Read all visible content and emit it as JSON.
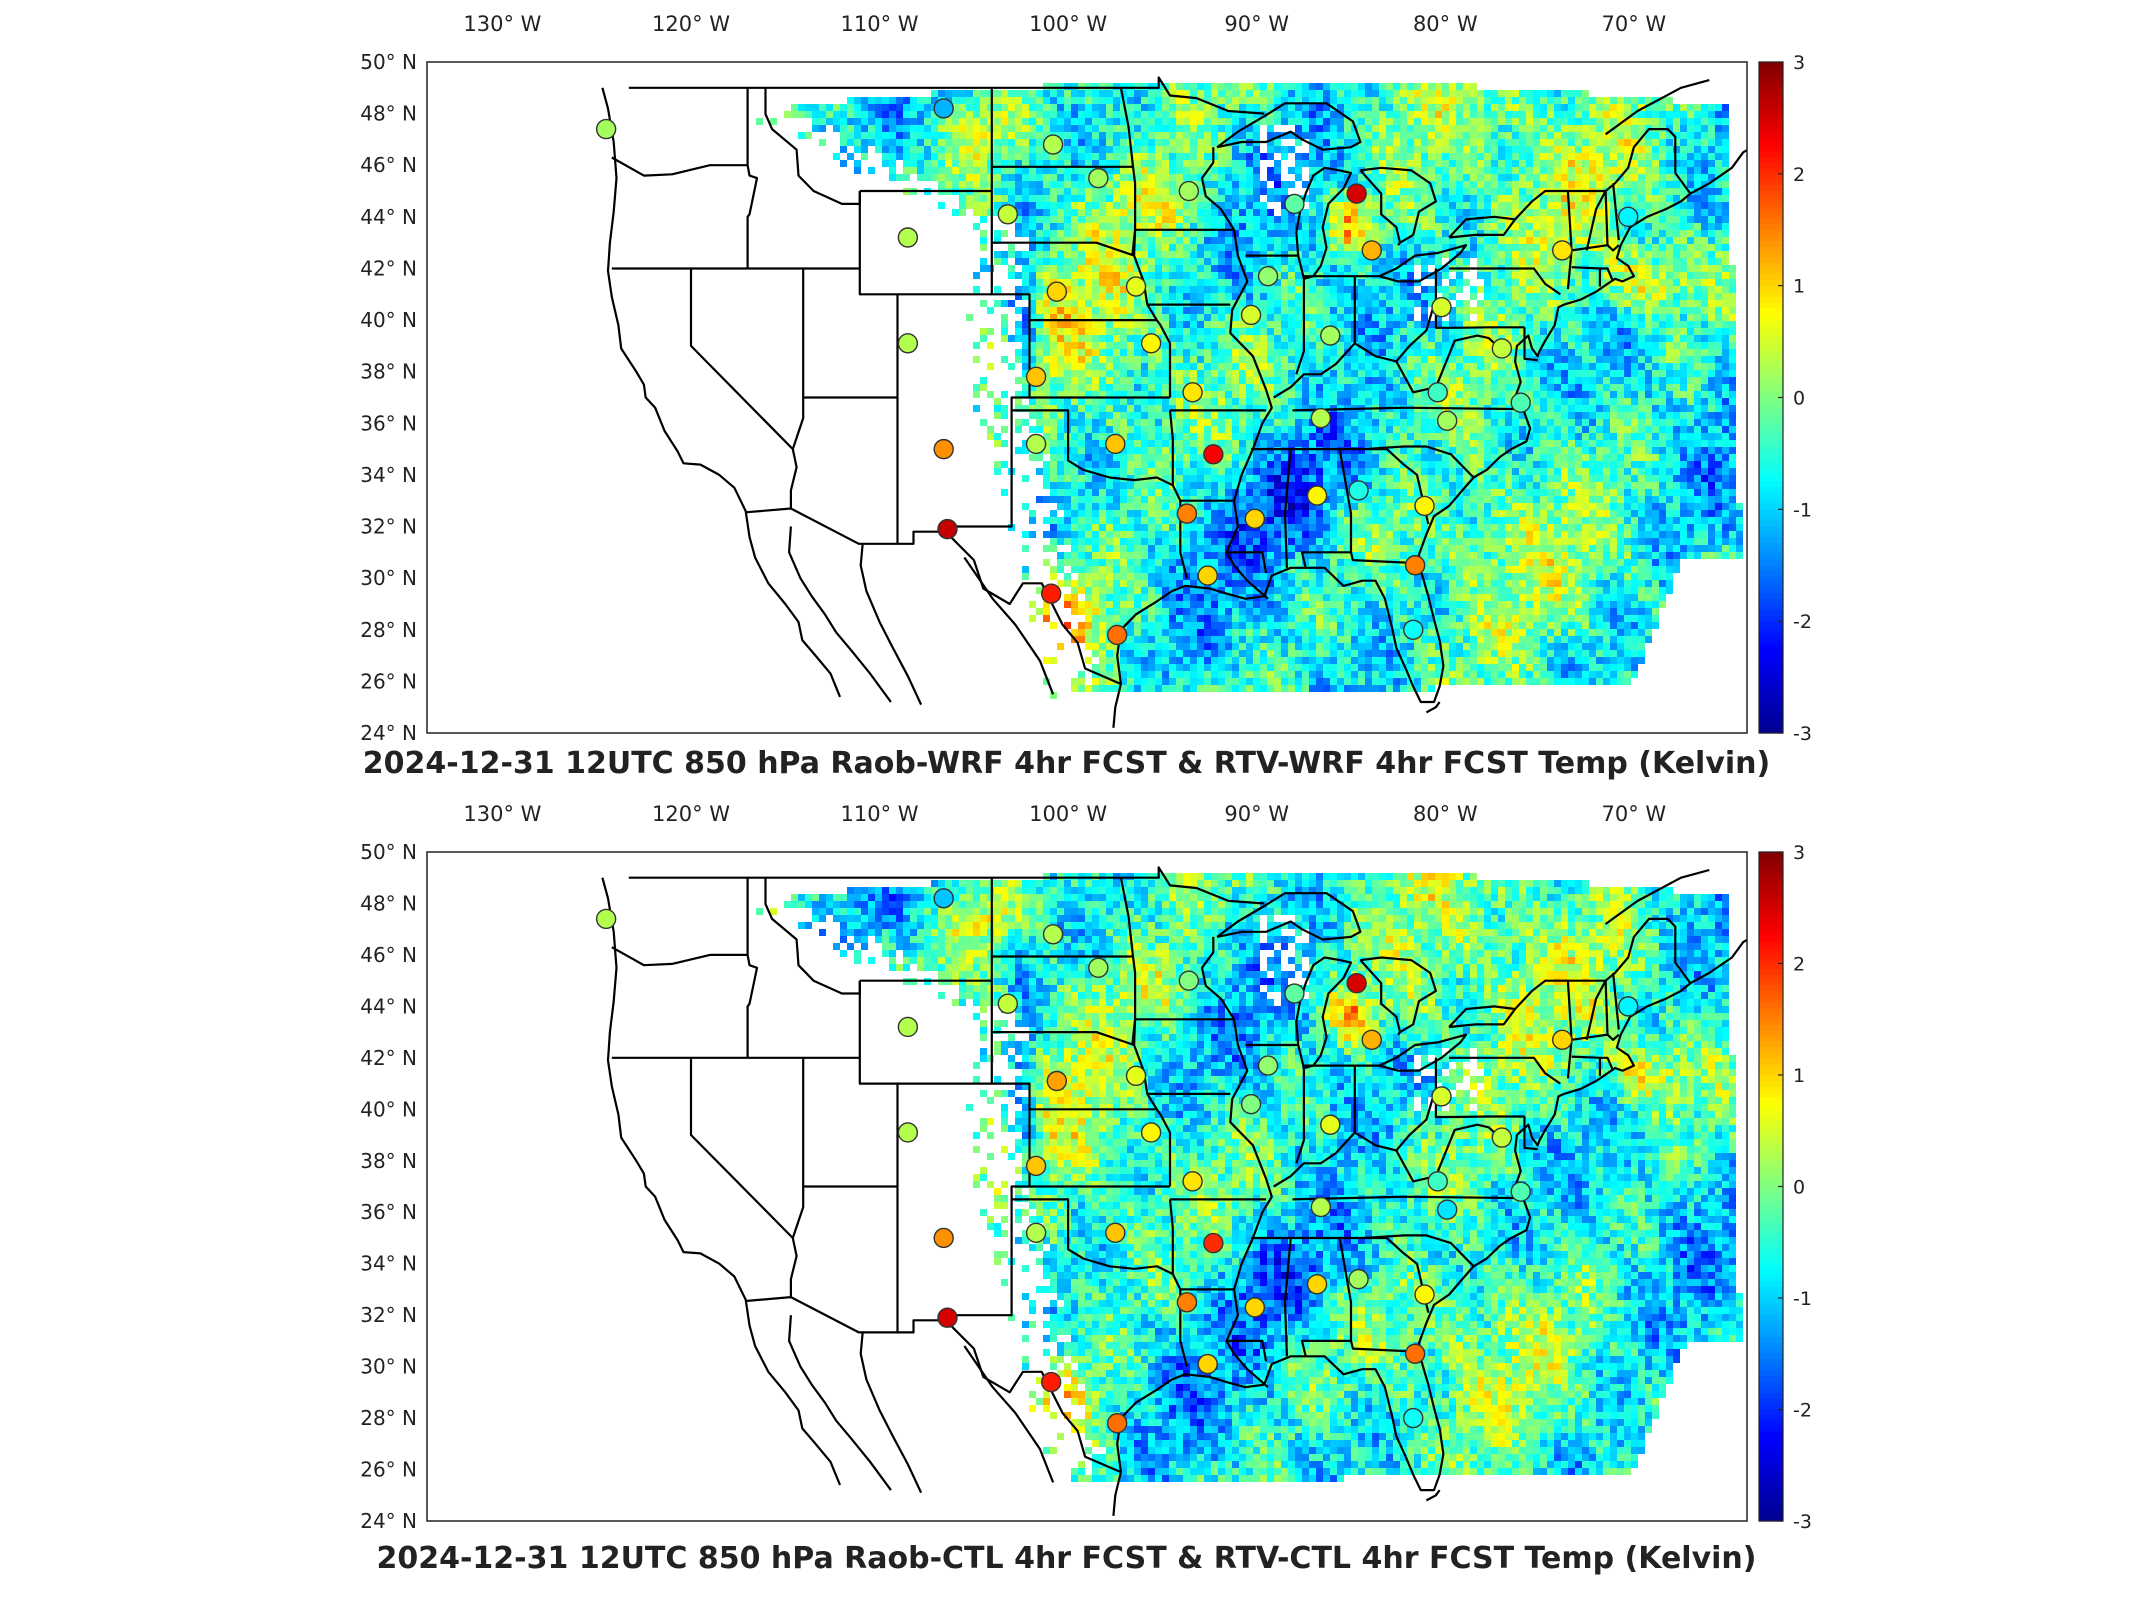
{
  "colors": {
    "scale": [
      "#00008f",
      "#0000ff",
      "#0080ff",
      "#00ffff",
      "#80ff80",
      "#ffff00",
      "#ff8000",
      "#ff0000",
      "#800000"
    ],
    "land": "#ffffff",
    "frame": "#000000"
  },
  "shared": {
    "lon_ticks": [
      "130° W",
      "120° W",
      "110° W",
      "100° W",
      "90° W",
      "80° W",
      "70° W"
    ],
    "lat_ticks": [
      "50° N",
      "48° N",
      "46° N",
      "44° N",
      "42° N",
      "40° N",
      "38° N",
      "36° N",
      "34° N",
      "32° N",
      "30° N",
      "28° N",
      "26° N",
      "24° N"
    ],
    "colorbar_ticks": [
      "3",
      "2",
      "1",
      "0",
      "-1",
      "-2",
      "-3"
    ],
    "colorbar_range": [
      -3,
      3
    ]
  },
  "maps": [
    {
      "title": "2024-12-31 12UTC 850 hPa Raob-WRF 4hr FCST & RTV-WRF 4hr FCST Temp (Kelvin)",
      "stations": [
        {
          "lon": -124.5,
          "lat": 47.4,
          "v": 0.2
        },
        {
          "lon": -106.6,
          "lat": 48.2,
          "v": -1.2
        },
        {
          "lon": -100.8,
          "lat": 46.8,
          "v": 0.3
        },
        {
          "lon": -98.4,
          "lat": 45.5,
          "v": 0.2
        },
        {
          "lon": -93.6,
          "lat": 45.0,
          "v": 0.2
        },
        {
          "lon": -108.5,
          "lat": 43.2,
          "v": 0.3
        },
        {
          "lon": -103.2,
          "lat": 44.1,
          "v": 0.4
        },
        {
          "lon": -100.6,
          "lat": 41.1,
          "v": 1.0
        },
        {
          "lon": -96.4,
          "lat": 41.3,
          "v": 0.6
        },
        {
          "lon": -108.5,
          "lat": 39.1,
          "v": 0.3
        },
        {
          "lon": -101.7,
          "lat": 37.8,
          "v": 1.1
        },
        {
          "lon": -95.6,
          "lat": 39.1,
          "v": 0.8
        },
        {
          "lon": -93.4,
          "lat": 37.2,
          "v": 0.9
        },
        {
          "lon": -106.6,
          "lat": 35.0,
          "v": 1.4
        },
        {
          "lon": -101.7,
          "lat": 35.2,
          "v": 0.3
        },
        {
          "lon": -97.5,
          "lat": 35.2,
          "v": 1.1
        },
        {
          "lon": -92.3,
          "lat": 34.8,
          "v": 2.3
        },
        {
          "lon": -106.4,
          "lat": 31.9,
          "v": 2.6
        },
        {
          "lon": -100.9,
          "lat": 29.4,
          "v": 2.1
        },
        {
          "lon": -97.4,
          "lat": 27.8,
          "v": 1.6
        },
        {
          "lon": -93.7,
          "lat": 32.5,
          "v": 1.5
        },
        {
          "lon": -92.6,
          "lat": 30.1,
          "v": 1.0
        },
        {
          "lon": -90.1,
          "lat": 32.3,
          "v": 1.0
        },
        {
          "lon": -86.8,
          "lat": 33.2,
          "v": 0.8
        },
        {
          "lon": -84.6,
          "lat": 33.4,
          "v": -0.6
        },
        {
          "lon": -81.6,
          "lat": 30.5,
          "v": 1.5
        },
        {
          "lon": -81.1,
          "lat": 32.8,
          "v": 0.8
        },
        {
          "lon": -90.3,
          "lat": 40.2,
          "v": 0.5
        },
        {
          "lon": -86.6,
          "lat": 36.2,
          "v": 0.3
        },
        {
          "lon": -86.1,
          "lat": 39.4,
          "v": 0.2
        },
        {
          "lon": -83.9,
          "lat": 42.7,
          "v": 1.2
        },
        {
          "lon": -84.7,
          "lat": 44.9,
          "v": 2.5
        },
        {
          "lon": -80.2,
          "lat": 40.5,
          "v": 0.5
        },
        {
          "lon": -80.4,
          "lat": 37.2,
          "v": -0.4
        },
        {
          "lon": -79.9,
          "lat": 36.1,
          "v": 0.2
        },
        {
          "lon": -77.0,
          "lat": 38.9,
          "v": 0.4
        },
        {
          "lon": -76.0,
          "lat": 36.8,
          "v": -0.3
        },
        {
          "lon": -70.3,
          "lat": 44.0,
          "v": -0.8
        },
        {
          "lon": -73.8,
          "lat": 42.7,
          "v": 0.9
        },
        {
          "lon": -89.4,
          "lat": 41.7,
          "v": 0.1
        },
        {
          "lon": -88.0,
          "lat": 44.5,
          "v": -0.2
        },
        {
          "lon": -81.7,
          "lat": 28.0,
          "v": -0.7
        }
      ]
    },
    {
      "title": "2024-12-31 12UTC 850 hPa Raob-CTL 4hr FCST & RTV-CTL 4hr FCST Temp (Kelvin)",
      "stations": [
        {
          "lon": -124.5,
          "lat": 47.4,
          "v": 0.3
        },
        {
          "lon": -106.6,
          "lat": 48.2,
          "v": -1.1
        },
        {
          "lon": -100.8,
          "lat": 46.8,
          "v": 0.3
        },
        {
          "lon": -98.4,
          "lat": 45.5,
          "v": 0.2
        },
        {
          "lon": -93.6,
          "lat": 45.0,
          "v": 0.0
        },
        {
          "lon": -108.5,
          "lat": 43.2,
          "v": 0.3
        },
        {
          "lon": -103.2,
          "lat": 44.1,
          "v": 0.4
        },
        {
          "lon": -100.6,
          "lat": 41.1,
          "v": 1.3
        },
        {
          "lon": -96.4,
          "lat": 41.3,
          "v": 0.6
        },
        {
          "lon": -108.5,
          "lat": 39.1,
          "v": 0.3
        },
        {
          "lon": -101.7,
          "lat": 37.8,
          "v": 1.1
        },
        {
          "lon": -95.6,
          "lat": 39.1,
          "v": 0.8
        },
        {
          "lon": -93.4,
          "lat": 37.2,
          "v": 0.9
        },
        {
          "lon": -106.6,
          "lat": 35.0,
          "v": 1.4
        },
        {
          "lon": -101.7,
          "lat": 35.2,
          "v": 0.3
        },
        {
          "lon": -97.5,
          "lat": 35.2,
          "v": 1.1
        },
        {
          "lon": -92.3,
          "lat": 34.8,
          "v": 2.0
        },
        {
          "lon": -106.4,
          "lat": 31.9,
          "v": 2.5
        },
        {
          "lon": -100.9,
          "lat": 29.4,
          "v": 2.1
        },
        {
          "lon": -97.4,
          "lat": 27.8,
          "v": 1.6
        },
        {
          "lon": -93.7,
          "lat": 32.5,
          "v": 1.5
        },
        {
          "lon": -92.6,
          "lat": 30.1,
          "v": 1.0
        },
        {
          "lon": -90.1,
          "lat": 32.3,
          "v": 1.0
        },
        {
          "lon": -86.8,
          "lat": 33.2,
          "v": 1.0
        },
        {
          "lon": -84.6,
          "lat": 33.4,
          "v": 0.2
        },
        {
          "lon": -81.6,
          "lat": 30.5,
          "v": 1.6
        },
        {
          "lon": -81.1,
          "lat": 32.8,
          "v": 0.8
        },
        {
          "lon": -90.3,
          "lat": 40.2,
          "v": 0.0
        },
        {
          "lon": -86.6,
          "lat": 36.2,
          "v": 0.3
        },
        {
          "lon": -86.1,
          "lat": 39.4,
          "v": 0.6
        },
        {
          "lon": -83.9,
          "lat": 42.7,
          "v": 1.2
        },
        {
          "lon": -84.7,
          "lat": 44.9,
          "v": 2.5
        },
        {
          "lon": -80.2,
          "lat": 40.5,
          "v": 0.5
        },
        {
          "lon": -80.4,
          "lat": 37.2,
          "v": -0.4
        },
        {
          "lon": -79.9,
          "lat": 36.1,
          "v": -0.9
        },
        {
          "lon": -77.0,
          "lat": 38.9,
          "v": 0.4
        },
        {
          "lon": -76.0,
          "lat": 36.8,
          "v": -0.3
        },
        {
          "lon": -70.3,
          "lat": 44.0,
          "v": -0.8
        },
        {
          "lon": -73.8,
          "lat": 42.7,
          "v": 1.0
        },
        {
          "lon": -89.4,
          "lat": 41.7,
          "v": 0.1
        },
        {
          "lon": -88.0,
          "lat": 44.5,
          "v": -0.2
        },
        {
          "lon": -81.7,
          "lat": 28.0,
          "v": -0.7
        }
      ]
    }
  ]
}
